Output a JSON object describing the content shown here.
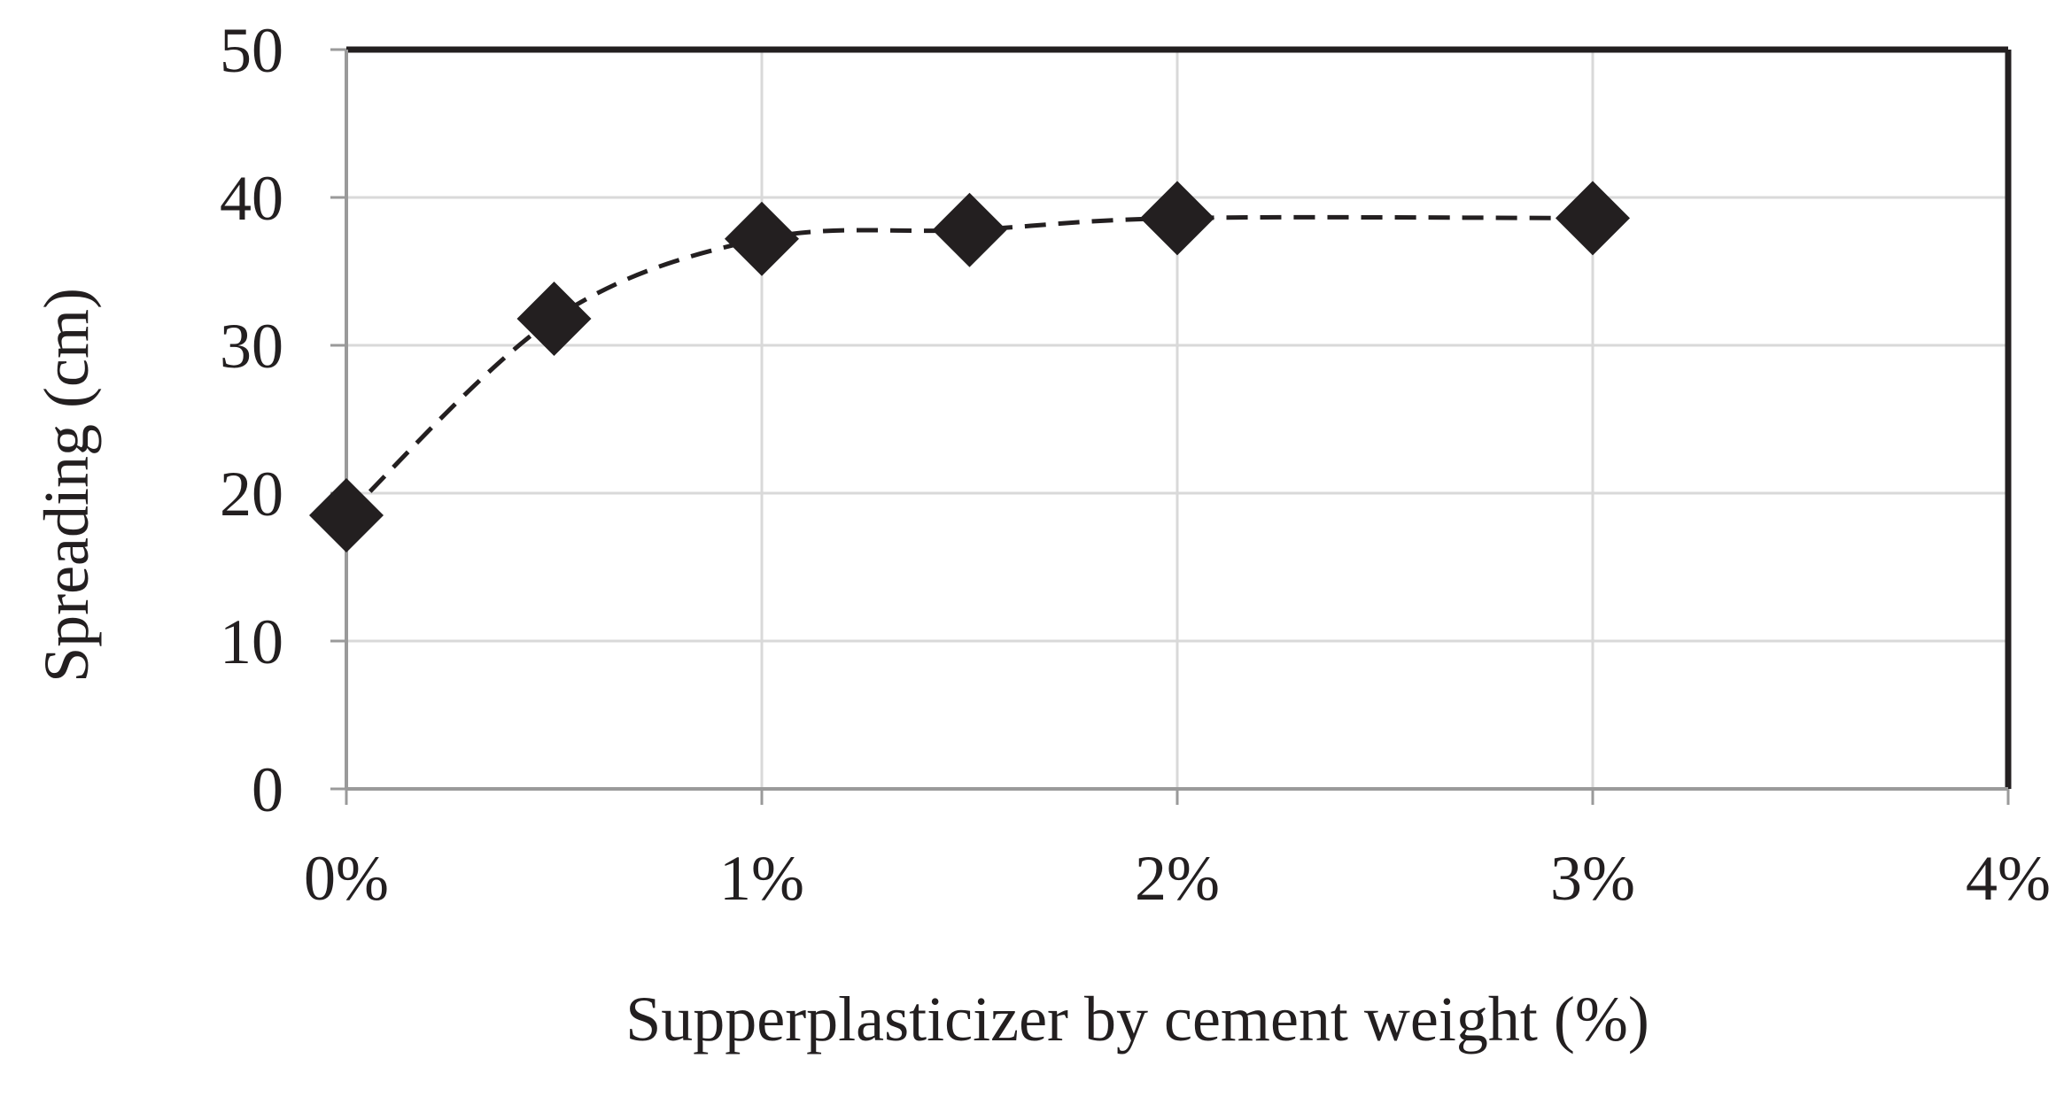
{
  "chart_data": {
    "type": "line",
    "title": "",
    "xlabel": "Supperplasticizer by cement weight (%)",
    "ylabel": "Spreading (cm)",
    "xlim": [
      0,
      4
    ],
    "ylim": [
      0,
      50
    ],
    "x_ticks": [
      {
        "value": 0,
        "label": "0%"
      },
      {
        "value": 1,
        "label": "1%"
      },
      {
        "value": 2,
        "label": "2%"
      },
      {
        "value": 3,
        "label": "3%"
      },
      {
        "value": 4,
        "label": "4%"
      }
    ],
    "y_ticks": [
      {
        "value": 0,
        "label": "0"
      },
      {
        "value": 10,
        "label": "10"
      },
      {
        "value": 20,
        "label": "20"
      },
      {
        "value": 30,
        "label": "30"
      },
      {
        "value": 40,
        "label": "40"
      },
      {
        "value": 50,
        "label": "50"
      }
    ],
    "grid": true,
    "legend": "none",
    "series": [
      {
        "marker": "diamond",
        "line_style": "dashed",
        "smooth": true,
        "color": "#231f20",
        "points": [
          {
            "x": 0,
            "y": 18.5
          },
          {
            "x": 0.5,
            "y": 31.8
          },
          {
            "x": 1,
            "y": 37.2
          },
          {
            "x": 1.5,
            "y": 37.8
          },
          {
            "x": 2,
            "y": 38.6
          },
          {
            "x": 3,
            "y": 38.6
          }
        ]
      }
    ]
  },
  "colors": {
    "ink": "#231f20",
    "grid": "#d9d9d9",
    "background": "#ffffff"
  }
}
